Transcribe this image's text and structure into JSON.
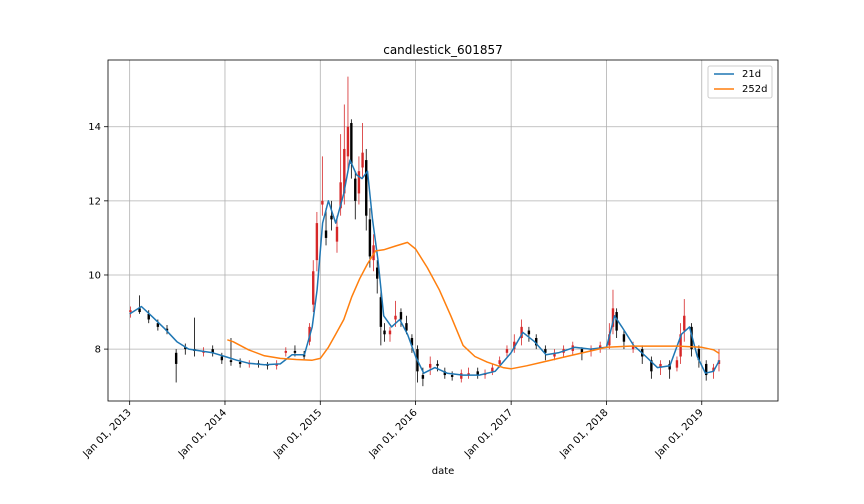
{
  "chart_data": {
    "type": "line",
    "title": "candlestick_601857",
    "xlabel": "date",
    "ylabel": "",
    "x_tick_labels": [
      "Jan 01, 2013",
      "Jan 01, 2014",
      "Jan 01, 2015",
      "Jan 01, 2016",
      "Jan 01, 2017",
      "Jan 01, 2018",
      "Jan 01, 2019"
    ],
    "x_tick_values": [
      "2013-01-01",
      "2014-01-01",
      "2015-01-01",
      "2016-01-01",
      "2017-01-01",
      "2018-01-01",
      "2019-01-01"
    ],
    "y_ticks": [
      8,
      10,
      12,
      14
    ],
    "xlim": [
      "2012-10-10",
      "2019-10-20"
    ],
    "ylim": [
      6.6,
      15.8
    ],
    "grid": true,
    "legend_position": "top-right",
    "colors": {
      "candle_up": "#d62728",
      "candle_down": "#000000",
      "ma21": "#1f77b4",
      "ma252": "#ff7f0e"
    },
    "candles": {
      "dates": [
        "2013-01-04",
        "2013-02-08",
        "2013-03-15",
        "2013-04-19",
        "2013-05-24",
        "2013-06-28",
        "2013-08-02",
        "2013-09-06",
        "2013-10-11",
        "2013-11-15",
        "2013-12-20",
        "2014-01-24",
        "2014-02-28",
        "2014-04-04",
        "2014-05-09",
        "2014-06-13",
        "2014-07-18",
        "2014-08-22",
        "2014-09-26",
        "2014-10-31",
        "2014-11-21",
        "2014-12-05",
        "2014-12-19",
        "2015-01-09",
        "2015-01-23",
        "2015-02-13",
        "2015-03-06",
        "2015-03-20",
        "2015-04-03",
        "2015-04-17",
        "2015-04-30",
        "2015-05-15",
        "2015-05-29",
        "2015-06-12",
        "2015-06-26",
        "2015-07-10",
        "2015-07-24",
        "2015-08-07",
        "2015-08-21",
        "2015-09-04",
        "2015-09-25",
        "2015-10-16",
        "2015-11-06",
        "2015-11-27",
        "2015-12-18",
        "2016-01-08",
        "2016-01-29",
        "2016-02-26",
        "2016-03-25",
        "2016-04-22",
        "2016-05-20",
        "2016-06-24",
        "2016-07-22",
        "2016-08-26",
        "2016-09-23",
        "2016-10-21",
        "2016-11-18",
        "2016-12-16",
        "2017-01-13",
        "2017-02-10",
        "2017-03-10",
        "2017-04-07",
        "2017-05-12",
        "2017-06-16",
        "2017-07-21",
        "2017-08-25",
        "2017-09-29",
        "2017-11-03",
        "2017-12-08",
        "2018-01-12",
        "2018-01-26",
        "2018-02-09",
        "2018-03-09",
        "2018-04-13",
        "2018-05-18",
        "2018-06-22",
        "2018-07-27",
        "2018-08-31",
        "2018-09-28",
        "2018-10-12",
        "2018-10-26",
        "2018-11-23",
        "2018-12-21",
        "2019-01-18",
        "2019-02-15",
        "2019-03-08"
      ],
      "open": [
        9.0,
        9.1,
        8.95,
        8.7,
        8.55,
        7.9,
        8.05,
        8.0,
        7.9,
        8.0,
        7.8,
        7.7,
        7.65,
        7.6,
        7.62,
        7.58,
        7.55,
        7.9,
        7.95,
        7.85,
        8.2,
        9.2,
        10.4,
        11.9,
        11.2,
        11.6,
        10.9,
        11.8,
        12.2,
        13.2,
        14.1,
        12.6,
        12.2,
        12.9,
        13.1,
        11.5,
        10.4,
        10.2,
        9.4,
        8.5,
        8.4,
        8.8,
        9.0,
        8.7,
        8.3,
        8.0,
        7.3,
        7.5,
        7.6,
        7.4,
        7.3,
        7.2,
        7.3,
        7.4,
        7.3,
        7.4,
        7.6,
        7.9,
        8.0,
        8.3,
        8.5,
        8.3,
        8.0,
        7.8,
        7.9,
        7.95,
        8.0,
        7.95,
        8.0,
        8.1,
        8.6,
        9.0,
        8.4,
        8.0,
        8.0,
        7.7,
        7.5,
        7.6,
        7.5,
        7.8,
        8.5,
        8.6,
        8.0,
        7.6,
        7.4,
        7.6
      ],
      "close": [
        9.05,
        9.0,
        8.8,
        8.6,
        8.5,
        7.6,
        8.0,
        7.95,
        7.95,
        7.9,
        7.7,
        7.65,
        7.6,
        7.62,
        7.58,
        7.55,
        7.6,
        7.95,
        7.9,
        7.8,
        8.6,
        10.1,
        11.4,
        12.0,
        11.0,
        11.5,
        11.3,
        12.5,
        13.4,
        14.0,
        13.0,
        12.0,
        12.8,
        13.3,
        11.6,
        10.5,
        10.8,
        9.9,
        8.6,
        8.4,
        8.5,
        8.9,
        8.8,
        8.5,
        8.1,
        7.4,
        7.2,
        7.6,
        7.55,
        7.3,
        7.25,
        7.35,
        7.35,
        7.3,
        7.35,
        7.5,
        7.7,
        8.0,
        8.2,
        8.6,
        8.4,
        8.1,
        7.9,
        7.9,
        8.0,
        8.1,
        7.9,
        8.0,
        8.1,
        8.4,
        9.1,
        8.5,
        8.2,
        8.1,
        7.8,
        7.4,
        7.6,
        7.45,
        7.7,
        8.4,
        8.9,
        8.0,
        7.7,
        7.3,
        7.5,
        7.7
      ],
      "high": [
        9.15,
        9.45,
        9.05,
        8.8,
        8.65,
        8.0,
        8.15,
        8.85,
        8.05,
        8.1,
        7.9,
        8.3,
        7.75,
        7.7,
        7.7,
        7.65,
        7.7,
        8.05,
        8.1,
        7.95,
        8.7,
        10.4,
        11.7,
        13.2,
        11.8,
        12.0,
        11.6,
        13.8,
        14.6,
        15.35,
        14.2,
        12.8,
        13.2,
        14.1,
        13.4,
        11.8,
        11.1,
        10.4,
        9.6,
        8.7,
        8.6,
        9.3,
        9.1,
        8.9,
        8.4,
        8.1,
        7.5,
        7.8,
        7.7,
        7.5,
        7.4,
        7.45,
        7.5,
        7.5,
        7.45,
        7.6,
        7.8,
        8.1,
        8.4,
        8.8,
        8.6,
        8.4,
        8.1,
        8.0,
        8.1,
        8.2,
        8.05,
        8.1,
        8.2,
        8.7,
        9.6,
        9.1,
        8.5,
        8.2,
        8.1,
        7.8,
        7.7,
        7.7,
        7.8,
        8.7,
        9.35,
        8.7,
        8.1,
        7.7,
        7.6,
        8.0
      ],
      "low": [
        8.85,
        8.95,
        8.7,
        8.5,
        8.4,
        7.1,
        7.85,
        7.8,
        7.8,
        7.8,
        7.6,
        7.55,
        7.5,
        7.5,
        7.5,
        7.45,
        7.45,
        7.8,
        7.8,
        7.7,
        8.1,
        9.0,
        10.1,
        11.6,
        10.8,
        11.2,
        10.6,
        11.6,
        11.9,
        12.8,
        12.6,
        11.5,
        11.9,
        12.6,
        11.2,
        10.2,
        10.1,
        9.5,
        8.1,
        8.2,
        8.2,
        8.6,
        8.6,
        8.4,
        7.9,
        7.1,
        7.0,
        7.3,
        7.4,
        7.2,
        7.15,
        7.1,
        7.2,
        7.2,
        7.2,
        7.3,
        7.5,
        7.8,
        7.9,
        8.1,
        8.2,
        8.0,
        7.7,
        7.7,
        7.8,
        7.85,
        7.7,
        7.8,
        7.9,
        8.0,
        8.4,
        8.3,
        8.0,
        7.9,
        7.6,
        7.2,
        7.3,
        7.2,
        7.4,
        7.6,
        8.2,
        7.8,
        7.5,
        7.15,
        7.2,
        7.4
      ]
    },
    "series": [
      {
        "name": "21d",
        "dates": [
          "2013-01-01",
          "2013-02-15",
          "2013-04-01",
          "2013-05-15",
          "2013-07-01",
          "2013-08-15",
          "2013-10-01",
          "2013-11-15",
          "2014-01-01",
          "2014-02-15",
          "2014-04-01",
          "2014-06-01",
          "2014-08-01",
          "2014-09-15",
          "2014-11-01",
          "2014-12-01",
          "2014-12-20",
          "2015-01-10",
          "2015-02-01",
          "2015-03-01",
          "2015-04-01",
          "2015-04-25",
          "2015-05-20",
          "2015-06-10",
          "2015-07-01",
          "2015-07-20",
          "2015-08-10",
          "2015-09-01",
          "2015-10-01",
          "2015-11-01",
          "2015-12-01",
          "2016-01-01",
          "2016-02-01",
          "2016-03-15",
          "2016-05-01",
          "2016-07-01",
          "2016-09-01",
          "2016-11-01",
          "2017-01-01",
          "2017-02-15",
          "2017-04-01",
          "2017-05-15",
          "2017-07-01",
          "2017-09-01",
          "2017-11-01",
          "2018-01-01",
          "2018-02-01",
          "2018-03-01",
          "2018-04-15",
          "2018-06-01",
          "2018-07-15",
          "2018-09-01",
          "2018-10-15",
          "2018-11-15",
          "2018-12-15",
          "2019-01-15",
          "2019-02-15",
          "2019-03-10"
        ],
        "values": [
          8.95,
          9.15,
          8.85,
          8.55,
          8.2,
          8.0,
          7.95,
          7.9,
          7.8,
          7.7,
          7.62,
          7.58,
          7.6,
          7.85,
          7.85,
          8.6,
          9.6,
          11.4,
          12.0,
          11.4,
          12.2,
          13.1,
          12.7,
          12.6,
          12.8,
          11.5,
          10.4,
          8.9,
          8.6,
          8.8,
          8.4,
          7.8,
          7.35,
          7.5,
          7.35,
          7.3,
          7.3,
          7.4,
          7.9,
          8.45,
          8.2,
          7.85,
          7.9,
          8.05,
          8.0,
          8.05,
          8.9,
          8.6,
          8.1,
          7.8,
          7.5,
          7.55,
          8.4,
          8.6,
          7.8,
          7.35,
          7.4,
          7.7
        ]
      },
      {
        "name": "252d",
        "dates": [
          "2014-01-10",
          "2014-02-01",
          "2014-04-01",
          "2014-06-01",
          "2014-08-01",
          "2014-10-01",
          "2014-12-01",
          "2015-01-01",
          "2015-02-01",
          "2015-03-01",
          "2015-04-01",
          "2015-05-01",
          "2015-06-01",
          "2015-07-01",
          "2015-08-01",
          "2015-09-01",
          "2015-10-15",
          "2015-12-01",
          "2016-01-01",
          "2016-02-15",
          "2016-04-01",
          "2016-05-15",
          "2016-07-01",
          "2016-08-15",
          "2016-10-01",
          "2016-12-01",
          "2017-01-01",
          "2017-03-01",
          "2017-05-01",
          "2017-08-01",
          "2017-11-01",
          "2018-01-01",
          "2018-04-01",
          "2018-07-01",
          "2018-10-01",
          "2019-01-01",
          "2019-02-15",
          "2019-03-10"
        ],
        "values": [
          8.25,
          8.2,
          7.98,
          7.82,
          7.75,
          7.72,
          7.7,
          7.75,
          8.05,
          8.4,
          8.8,
          9.4,
          9.9,
          10.3,
          10.65,
          10.68,
          10.78,
          10.88,
          10.7,
          10.2,
          9.6,
          8.9,
          8.1,
          7.8,
          7.65,
          7.5,
          7.47,
          7.55,
          7.65,
          7.8,
          7.95,
          8.05,
          8.08,
          8.08,
          8.08,
          8.05,
          7.98,
          7.88
        ]
      }
    ]
  }
}
